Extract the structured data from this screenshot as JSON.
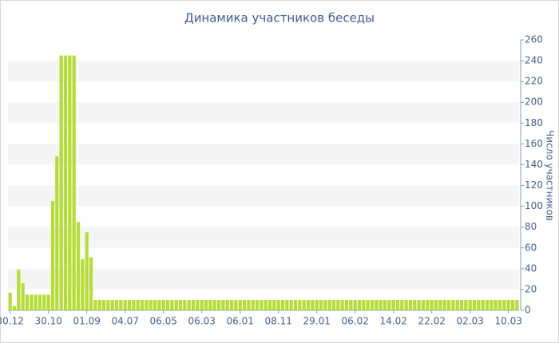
{
  "chart_data": {
    "type": "bar",
    "title": "Динамика участников беседы",
    "y_label": "Число участников",
    "categories": [
      "30.12",
      null,
      null,
      null,
      null,
      null,
      null,
      null,
      null,
      "30.10",
      null,
      null,
      null,
      null,
      null,
      null,
      null,
      null,
      "01.09",
      null,
      null,
      null,
      null,
      null,
      null,
      null,
      null,
      "04.07",
      null,
      null,
      null,
      null,
      null,
      null,
      null,
      null,
      "06.05",
      null,
      null,
      null,
      null,
      null,
      null,
      null,
      null,
      "06.03",
      null,
      null,
      null,
      null,
      null,
      null,
      null,
      null,
      "06.01",
      null,
      null,
      null,
      null,
      null,
      null,
      null,
      null,
      "08.11",
      null,
      null,
      null,
      null,
      null,
      null,
      null,
      null,
      "29.01",
      null,
      null,
      null,
      null,
      null,
      null,
      null,
      null,
      "06.02",
      null,
      null,
      null,
      null,
      null,
      null,
      null,
      null,
      "14.02",
      null,
      null,
      null,
      null,
      null,
      null,
      null,
      null,
      "22.02",
      null,
      null,
      null,
      null,
      null,
      null,
      null,
      null,
      "02.03",
      null,
      null,
      null,
      null,
      null,
      null,
      null,
      null,
      "10.03",
      null,
      null
    ],
    "values": [
      17,
      4,
      39,
      26,
      15,
      15,
      15,
      15,
      15,
      15,
      105,
      148,
      245,
      245,
      245,
      245,
      85,
      49,
      75,
      51,
      10,
      10,
      10,
      10,
      10,
      10,
      10,
      10,
      10,
      10,
      10,
      10,
      10,
      10,
      10,
      10,
      10,
      10,
      10,
      10,
      10,
      10,
      10,
      10,
      10,
      10,
      10,
      10,
      10,
      10,
      10,
      10,
      10,
      10,
      10,
      10,
      10,
      10,
      10,
      10,
      10,
      10,
      10,
      10,
      10,
      10,
      10,
      10,
      10,
      10,
      10,
      10,
      10,
      10,
      10,
      10,
      10,
      10,
      10,
      10,
      10,
      10,
      10,
      10,
      10,
      10,
      10,
      10,
      10,
      10,
      10,
      10,
      10,
      10,
      10,
      10,
      10,
      10,
      10,
      10,
      10,
      10,
      10,
      10,
      10,
      10,
      10,
      10,
      10,
      10,
      10,
      10,
      10,
      10,
      10,
      10,
      10,
      10,
      10,
      10
    ],
    "color": "#b5dd38",
    "ylim": [
      0,
      260
    ],
    "yticks": [
      0,
      20,
      40,
      60,
      80,
      100,
      120,
      140,
      160,
      180,
      200,
      220,
      240,
      260
    ],
    "grid": true,
    "y_axis_side": "right"
  }
}
